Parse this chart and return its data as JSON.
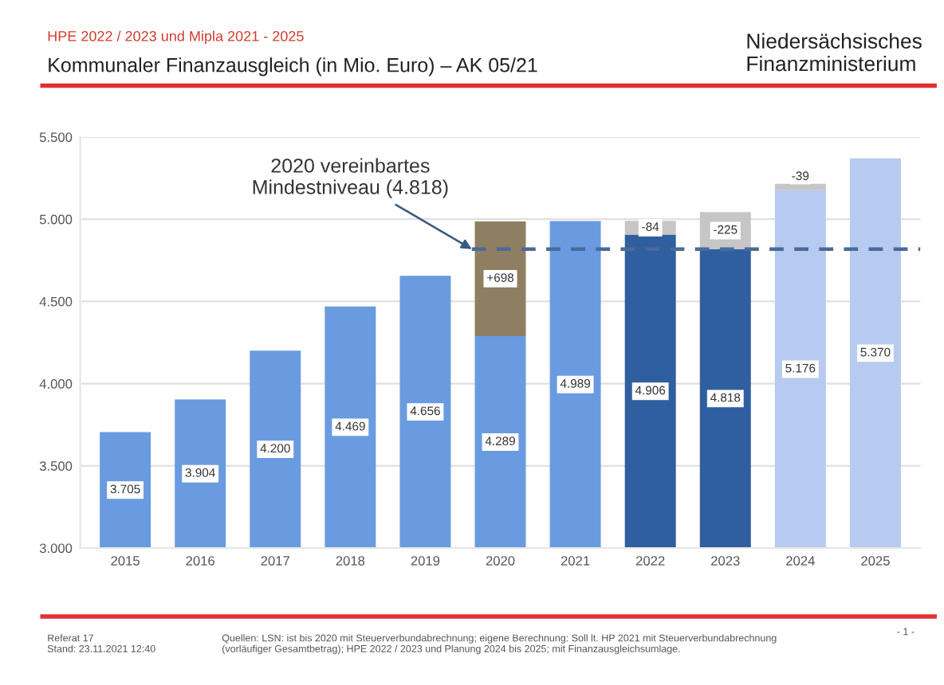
{
  "chart_data": {
    "type": "bar",
    "subtitle": "HPE 2022 / 2023 und Mipla 2021 - 2025",
    "title": "Kommunaler Finanzausgleich (in Mio. Euro) – AK 05/21",
    "categories": [
      "2015",
      "2016",
      "2017",
      "2018",
      "2019",
      "2020",
      "2021",
      "2022",
      "2023",
      "2024",
      "2025"
    ],
    "series": [
      {
        "colors": [
          "#6a9be0",
          "#6a9be0",
          "#6a9be0",
          "#6a9be0",
          "#6a9be0",
          "#6a9be0",
          "#6a9be0",
          "#2f5f9e",
          "#2f5f9e",
          "#b7caf0",
          "#b7caf0"
        ],
        "values": [
          3705,
          3904,
          4200,
          4469,
          4656,
          4289,
          4989,
          4906,
          4818,
          5176,
          5370
        ],
        "value_labels": [
          "3.705",
          "3.904",
          "4.200",
          "4.469",
          "4.656",
          "4.289",
          "4.989",
          "4.906",
          "4.818",
          "5.176",
          "5.370"
        ]
      },
      {
        "colors": [
          null,
          null,
          null,
          null,
          null,
          "#8f7f62",
          null,
          "#c6c6c6",
          "#c6c6c6",
          "#c6c6c6",
          null
        ],
        "base": [
          null,
          null,
          null,
          null,
          null,
          4289,
          null,
          4990,
          5043,
          5215,
          null
        ],
        "values": [
          null,
          null,
          null,
          null,
          null,
          698,
          null,
          -84,
          -225,
          -39,
          null
        ],
        "value_labels": [
          null,
          null,
          null,
          null,
          null,
          "+698",
          null,
          "-84",
          "-225",
          "-39",
          null
        ]
      }
    ],
    "ylim": [
      3000,
      5500
    ],
    "yticks": [
      {
        "value": 3000,
        "label": "3.000"
      },
      {
        "value": 3500,
        "label": "3.500"
      },
      {
        "value": 4000,
        "label": "4.000"
      },
      {
        "value": 4500,
        "label": "4.500"
      },
      {
        "value": 5000,
        "label": "5.000"
      },
      {
        "value": 5500,
        "label": "5.500"
      }
    ],
    "grid": "y",
    "ref_lines": [
      {
        "axis": "y",
        "value": 4818,
        "label": "2020 vereinbartes\nMindestniveau (4.818)",
        "color": "#4a6a9a",
        "line_style": "dashed"
      }
    ],
    "annotations": [
      "Niedersächsisches\nFinanzministerium",
      "Referat 17\nStand: 23.11.2021 12:40",
      "Quellen: LSN: ist bis 2020 mit Steuerverbundabrechnung; eigene Berechnung: Soll lt. HP 2021 mit Steuerverbundabrechnung\n(vorläufiger Gesamtbetrag); HPE 2022 / 2023 und Planung 2024 bis 2025; mit Finanzausgleichsumlage.",
      "- 1 -"
    ]
  }
}
